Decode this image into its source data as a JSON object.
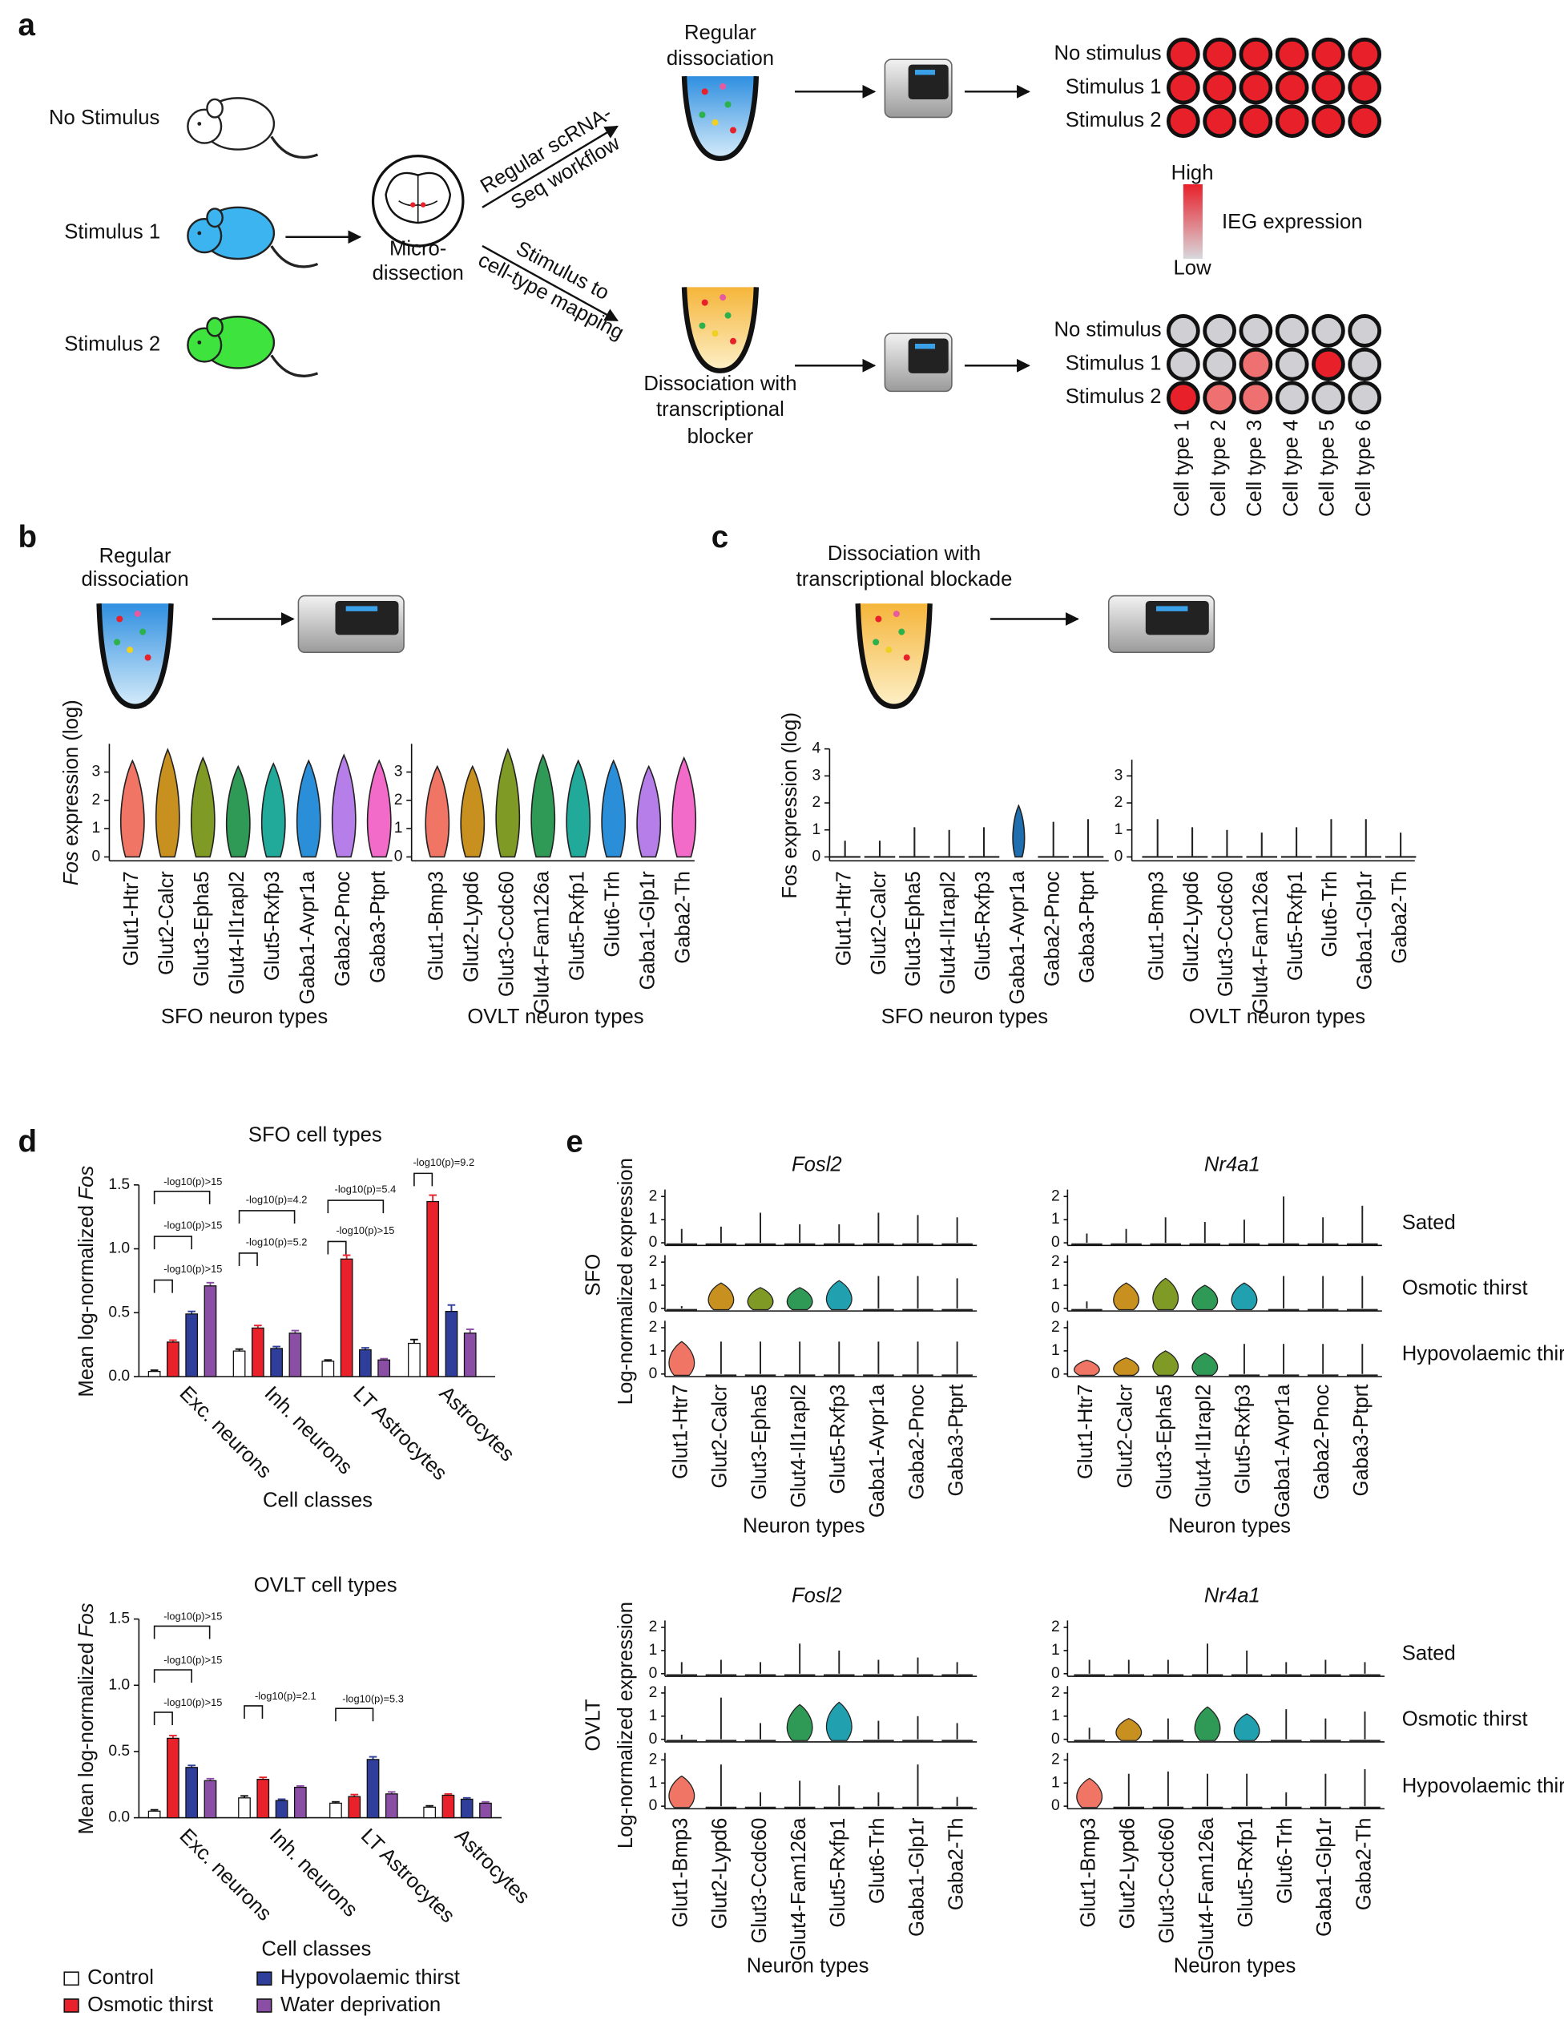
{
  "panel_a": {
    "label": "a",
    "conditions": [
      "No Stimulus",
      "Stimulus 1",
      "Stimulus 2"
    ],
    "dissection": [
      "Micro-",
      "dissection"
    ],
    "upper_path": [
      "Regular scRNA-",
      "Seq workflow"
    ],
    "lower_path": [
      "Stimulus to",
      "cell-type mapping"
    ],
    "upper_tube": [
      "Regular",
      "dissociation"
    ],
    "lower_tube": [
      "Dissociation with",
      "transcriptional",
      "blocker"
    ],
    "upper_rows": [
      "No stimulus",
      "Stimulus 1",
      "Stimulus 2"
    ],
    "upper_grid": [
      [
        "#e8202a",
        "#e8202a",
        "#e8202a",
        "#e8202a",
        "#e8202a",
        "#e8202a"
      ],
      [
        "#e8202a",
        "#e8202a",
        "#e8202a",
        "#e8202a",
        "#e8202a",
        "#e8202a"
      ],
      [
        "#e8202a",
        "#e8202a",
        "#e8202a",
        "#e8202a",
        "#e8202a",
        "#e8202a"
      ]
    ],
    "lower_rows": [
      "No stimulus",
      "Stimulus 1",
      "Stimulus 2"
    ],
    "lower_grid": [
      [
        "#d0d0d4",
        "#d0d0d4",
        "#d0d0d4",
        "#d0d0d4",
        "#d0d0d4",
        "#d0d0d4"
      ],
      [
        "#d0d0d4",
        "#d0d0d4",
        "#ee7070",
        "#d0d0d4",
        "#e8202a",
        "#d0d0d4"
      ],
      [
        "#e8202a",
        "#ee7070",
        "#ee7070",
        "#d0d0d4",
        "#d0d0d4",
        "#d0d0d4"
      ]
    ],
    "cell_types": [
      "Cell type 1",
      "Cell type 2",
      "Cell type 3",
      "Cell type 4",
      "Cell type 5",
      "Cell type 6"
    ],
    "scale": {
      "high": "High",
      "low": "Low",
      "title": "IEG expression"
    }
  },
  "panel_b": {
    "label": "b",
    "title": [
      "Regular",
      "dissociation"
    ]
  },
  "panel_c": {
    "label": "c",
    "title": [
      "Dissociation with",
      "transcriptional blockade"
    ]
  },
  "panel_d": {
    "label": "d"
  },
  "panel_e": {
    "label": "e",
    "regions": [
      "SFO",
      "OVLT"
    ]
  },
  "chart_data": [
    {
      "type": "violin",
      "ylabel_italic": "Fos",
      "ylabel": "expression (log)",
      "xlabel": "SFO neuron types",
      "categories": [
        "Glut1-Htr7",
        "Glut2-Calcr",
        "Glut3-Epha5",
        "Glut4-Il1rapl2",
        "Glut5-Rxfp3",
        "Gaba1-Avpr1a",
        "Gaba2-Pnoc",
        "Gaba3-Ptprt"
      ],
      "values": [
        3.4,
        3.8,
        3.5,
        3.2,
        3.3,
        3.4,
        3.6,
        3.4
      ],
      "colors": [
        "#f07565",
        "#c8901e",
        "#7f9a25",
        "#2e9a55",
        "#21a99a",
        "#2a8fd8",
        "#b57ee8",
        "#f26bc8"
      ],
      "line_color": "#222222",
      "ylim": [
        0,
        4
      ],
      "yticks": [
        0,
        1,
        2,
        3
      ]
    },
    {
      "type": "violin",
      "xlabel": "OVLT neuron types",
      "categories": [
        "Glut1-Bmp3",
        "Glut2-Lypd6",
        "Glut3-Ccdc60",
        "Glut4-Fam126a",
        "Glut5-Rxfp1",
        "Glut6-Trh",
        "Gaba1-Glp1r",
        "Gaba2-Th"
      ],
      "values": [
        3.2,
        3.2,
        3.8,
        3.6,
        3.4,
        3.4,
        3.2,
        3.5
      ],
      "colors": [
        "#f07565",
        "#c8901e",
        "#7f9a25",
        "#2e9a55",
        "#21a99a",
        "#2a8fd8",
        "#b57ee8",
        "#f26bc8"
      ],
      "line_color": "#222222",
      "ylim": [
        0,
        4
      ],
      "yticks": [
        0,
        1,
        2,
        3
      ]
    },
    {
      "type": "violin",
      "ylabel": "Fos expression (log)",
      "xlabel": "SFO neuron types",
      "categories": [
        "Glut1-Htr7",
        "Glut2-Calcr",
        "Glut3-Epha5",
        "Glut4-Il1rapl2",
        "Glut5-Rxfp3",
        "Gaba1-Avpr1a",
        "Gaba2-Pnoc",
        "Gaba3-Ptprt"
      ],
      "values": [
        0.6,
        0.6,
        1.1,
        1.0,
        1.1,
        1.9,
        1.3,
        1.4
      ],
      "colors": [
        "#222222",
        "#222222",
        "#222222",
        "#222222",
        "#222222",
        "#1f6fb0",
        "#222222",
        "#222222"
      ],
      "line_color": "#222222",
      "ylim": [
        0,
        4
      ],
      "yticks": [
        0,
        1,
        2,
        3,
        4
      ]
    },
    {
      "type": "violin",
      "xlabel": "OVLT neuron types",
      "categories": [
        "Glut1-Bmp3",
        "Glut2-Lypd6",
        "Glut3-Ccdc60",
        "Glut4-Fam126a",
        "Glut5-Rxfp1",
        "Glut6-Trh",
        "Gaba1-Glp1r",
        "Gaba2-Th"
      ],
      "values": [
        1.4,
        1.1,
        1.0,
        0.9,
        1.1,
        1.4,
        1.4,
        0.9
      ],
      "colors": [
        "#222222",
        "#222222",
        "#222222",
        "#222222",
        "#222222",
        "#222222",
        "#222222",
        "#222222"
      ],
      "line_color": "#222222",
      "ylim": [
        0,
        3.6
      ],
      "yticks": [
        0,
        1,
        2,
        3
      ]
    },
    {
      "type": "bar",
      "title": "SFO cell types",
      "ylabel": "Mean log-normalized",
      "ylabel_italic": "Fos",
      "xlabel": "Cell classes",
      "categories": [
        "Exc. neurons",
        "Inh. neurons",
        "LT Astrocytes",
        "Astrocytes"
      ],
      "ylim": [
        0,
        1.5
      ],
      "yticks": [
        {
          "value": 0,
          "label": "0.0"
        },
        {
          "value": 0.5,
          "label": "0.5"
        },
        {
          "value": 1,
          "label": "1.0"
        },
        {
          "value": 1.5,
          "label": "1.5"
        }
      ],
      "series": [
        {
          "color": "#ffffff",
          "values": [
            0.04,
            0.2,
            0.12,
            0.26
          ],
          "errors": [
            0.01,
            0.015,
            0.01,
            0.03
          ]
        },
        {
          "color": "#e8212a",
          "values": [
            0.27,
            0.38,
            0.92,
            1.37
          ],
          "errors": [
            0.015,
            0.02,
            0.03,
            0.05
          ]
        },
        {
          "color": "#2e3e9a",
          "values": [
            0.49,
            0.22,
            0.21,
            0.51
          ],
          "errors": [
            0.02,
            0.015,
            0.015,
            0.05
          ]
        },
        {
          "color": "#8a4fa5",
          "values": [
            0.71,
            0.34,
            0.13,
            0.34
          ],
          "errors": [
            0.025,
            0.02,
            0.01,
            0.03
          ]
        }
      ],
      "annotations": [
        "-log10(p)>15",
        "-log10(p)>15",
        "-log10(p)>15",
        "-log10(p)=4.2",
        "-log10(p)=5.2",
        "-log10(p)=5.4",
        "-log10(p)>15",
        "-log10(p)=9.2"
      ]
    },
    {
      "type": "bar",
      "title": "OVLT cell types",
      "ylabel": "Mean log-normalized",
      "ylabel_italic": "Fos",
      "xlabel": "Cell classes",
      "categories": [
        "Exc. neurons",
        "Inh. neurons",
        "LT Astrocytes",
        "Astrocytes"
      ],
      "ylim": [
        0,
        1.5
      ],
      "yticks": [
        {
          "value": 0,
          "label": "0.0"
        },
        {
          "value": 0.5,
          "label": "0.5"
        },
        {
          "value": 1,
          "label": "1.0"
        },
        {
          "value": 1.5,
          "label": "1.5"
        }
      ],
      "series": [
        {
          "name": "Control",
          "color": "#ffffff",
          "values": [
            0.05,
            0.15,
            0.11,
            0.08
          ],
          "errors": [
            0.01,
            0.015,
            0.01,
            0.01
          ]
        },
        {
          "name": "Osmotic thirst",
          "color": "#e8212a",
          "values": [
            0.6,
            0.29,
            0.16,
            0.17
          ],
          "errors": [
            0.02,
            0.015,
            0.015,
            0.01
          ]
        },
        {
          "name": "Hypovolaemic thirst",
          "color": "#2e3e9a",
          "values": [
            0.38,
            0.13,
            0.44,
            0.14
          ],
          "errors": [
            0.015,
            0.01,
            0.02,
            0.01
          ]
        },
        {
          "name": "Water deprivation",
          "color": "#8a4fa5",
          "values": [
            0.28,
            0.23,
            0.18,
            0.11
          ],
          "errors": [
            0.015,
            0.01,
            0.015,
            0.01
          ]
        }
      ],
      "annotations": [
        "-log10(p)>15",
        "-log10(p)>15",
        "-log10(p)>15",
        "-log10(p)=2.1",
        "-log10(p)=5.3"
      ]
    },
    {
      "type": "violin_grid",
      "gene": "Fosl2",
      "ylabel": "Log-normalized expression",
      "xlabel": "Neuron types",
      "categories": [
        "Glut1-Htr7",
        "Glut2-Calcr",
        "Glut3-Epha5",
        "Glut4-Il1rapl2",
        "Glut5-Rxfp3",
        "Gaba1-Avpr1a",
        "Gaba2-Pnoc",
        "Gaba3-Ptprt"
      ],
      "line_color": "#222222",
      "ylim": [
        0,
        2.3
      ],
      "yticks": [
        0,
        1,
        2
      ],
      "series": [
        {
          "values": [
            0.6,
            0.7,
            1.3,
            0.8,
            0.8,
            1.3,
            1.2,
            1.1
          ],
          "colors": [
            "#222222",
            "#222222",
            "#222222",
            "#222222",
            "#222222",
            "#222222",
            "#222222",
            "#222222"
          ]
        },
        {
          "values": [
            0.1,
            1.1,
            0.9,
            0.9,
            1.2,
            1.4,
            1.4,
            1.3
          ],
          "colors": [
            "#222222",
            "#c8901e",
            "#7f9a25",
            "#2e9a55",
            "#21a0b0",
            "#222222",
            "#222222",
            "#222222"
          ]
        },
        {
          "values": [
            1.4,
            1.4,
            1.4,
            1.4,
            1.4,
            1.4,
            1.4,
            1.4
          ],
          "colors": [
            "#f07565",
            "#222222",
            "#222222",
            "#222222",
            "#222222",
            "#222222",
            "#222222",
            "#222222"
          ]
        }
      ]
    },
    {
      "type": "violin_grid",
      "gene": "Nr4a1",
      "xlabel": "Neuron types",
      "categories": [
        "Glut1-Htr7",
        "Glut2-Calcr",
        "Glut3-Epha5",
        "Glut4-Il1rapl2",
        "Glut5-Rxfp3",
        "Gaba1-Avpr1a",
        "Gaba2-Pnoc",
        "Gaba3-Ptprt"
      ],
      "line_color": "#222222",
      "ylim": [
        0,
        2.3
      ],
      "yticks": [
        0,
        1,
        2
      ],
      "series": [
        {
          "name": "Sated",
          "values": [
            0.4,
            0.6,
            1.1,
            0.9,
            1.0,
            2.0,
            1.1,
            1.6
          ],
          "colors": [
            "#222222",
            "#222222",
            "#222222",
            "#222222",
            "#222222",
            "#222222",
            "#222222",
            "#222222"
          ]
        },
        {
          "name": "Osmotic thirst",
          "values": [
            0.3,
            1.1,
            1.3,
            1.0,
            1.1,
            1.4,
            1.4,
            1.4
          ],
          "colors": [
            "#222222",
            "#c8901e",
            "#7f9a25",
            "#2e9a55",
            "#21a0b0",
            "#222222",
            "#222222",
            "#222222"
          ]
        },
        {
          "name": "Hypovolaemic thirst",
          "values": [
            0.6,
            0.7,
            1.0,
            0.9,
            1.3,
            1.3,
            1.3,
            1.3
          ],
          "colors": [
            "#f07565",
            "#c8901e",
            "#7f9a25",
            "#2e9a55",
            "#222222",
            "#222222",
            "#222222",
            "#222222"
          ]
        }
      ]
    },
    {
      "type": "violin_grid",
      "gene": "Fosl2",
      "ylabel": "Log-normalized expression",
      "xlabel": "Neuron types",
      "categories": [
        "Glut1-Bmp3",
        "Glut2-Lypd6",
        "Glut3-Ccdc60",
        "Glut4-Fam126a",
        "Glut5-Rxfp1",
        "Glut6-Trh",
        "Gaba1-Glp1r",
        "Gaba2-Th"
      ],
      "line_color": "#222222",
      "ylim": [
        0,
        2.3
      ],
      "yticks": [
        0,
        1,
        2
      ],
      "series": [
        {
          "values": [
            0.5,
            0.6,
            0.5,
            1.3,
            1.0,
            0.6,
            0.7,
            0.5
          ],
          "colors": [
            "#222222",
            "#222222",
            "#222222",
            "#222222",
            "#222222",
            "#222222",
            "#222222",
            "#222222"
          ]
        },
        {
          "values": [
            0.2,
            1.8,
            0.7,
            1.5,
            1.6,
            0.8,
            1.0,
            0.7
          ],
          "colors": [
            "#222222",
            "#222222",
            "#222222",
            "#2e9a55",
            "#21a0b0",
            "#222222",
            "#222222",
            "#222222"
          ]
        },
        {
          "values": [
            1.3,
            1.8,
            0.6,
            1.1,
            0.9,
            0.6,
            1.8,
            0.4
          ],
          "colors": [
            "#f07565",
            "#222222",
            "#222222",
            "#222222",
            "#222222",
            "#222222",
            "#222222",
            "#222222"
          ]
        }
      ]
    },
    {
      "type": "violin_grid",
      "gene": "Nr4a1",
      "xlabel": "Neuron types",
      "categories": [
        "Glut1-Bmp3",
        "Glut2-Lypd6",
        "Glut3-Ccdc60",
        "Glut4-Fam126a",
        "Glut5-Rxfp1",
        "Glut6-Trh",
        "Gaba1-Glp1r",
        "Gaba2-Th"
      ],
      "line_color": "#222222",
      "ylim": [
        0,
        2.3
      ],
      "yticks": [
        0,
        1,
        2
      ],
      "series": [
        {
          "name": "Sated",
          "values": [
            0.6,
            0.6,
            0.6,
            1.3,
            1.0,
            0.5,
            0.6,
            0.5
          ],
          "colors": [
            "#222222",
            "#222222",
            "#222222",
            "#222222",
            "#222222",
            "#222222",
            "#222222",
            "#222222"
          ]
        },
        {
          "name": "Osmotic thirst",
          "values": [
            0.5,
            0.9,
            0.9,
            1.4,
            1.1,
            1.3,
            0.9,
            1.2
          ],
          "colors": [
            "#222222",
            "#c8901e",
            "#222222",
            "#2e9a55",
            "#21a0b0",
            "#222222",
            "#222222",
            "#222222"
          ]
        },
        {
          "name": "Hypovolaemic thirst",
          "values": [
            1.2,
            1.4,
            1.5,
            1.4,
            1.4,
            0.6,
            1.4,
            1.6
          ],
          "colors": [
            "#f07565",
            "#222222",
            "#222222",
            "#222222",
            "#222222",
            "#222222",
            "#222222",
            "#222222"
          ]
        }
      ]
    }
  ]
}
